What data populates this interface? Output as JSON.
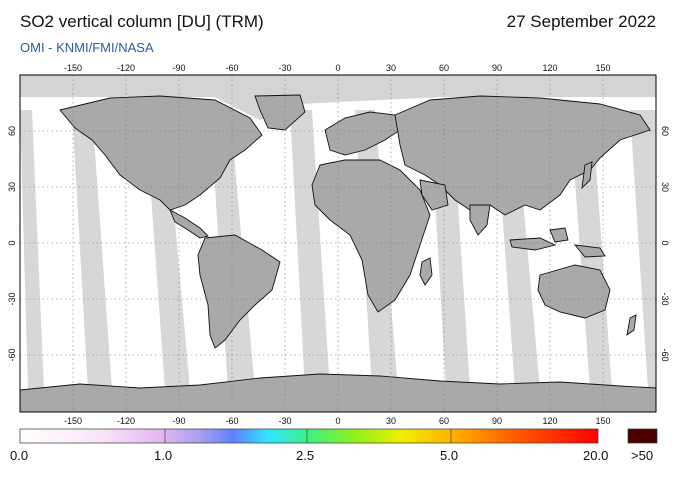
{
  "header": {
    "title": "SO2 vertical column [DU] (TRM)",
    "date": "27 September 2022",
    "credit": "OMI   -   KNMI/FMI/NASA"
  },
  "map": {
    "lon_ticks": [
      "-150",
      "-120",
      "-90",
      "-60",
      "-30",
      "0",
      "30",
      "60",
      "90",
      "120",
      "150"
    ],
    "lat_ticks": [
      "60",
      "30",
      "0",
      "-30",
      "-60"
    ],
    "colors": {
      "ocean": "#ffffff",
      "nodata": "#d4d4d4",
      "land_nodata": "#a9a9a9",
      "coast": "#111111"
    }
  },
  "colorbar": {
    "labels": [
      "0.0",
      "1.0",
      "2.5",
      "5.0",
      "20.0"
    ],
    "over_label": ">50",
    "over_color": "#4a0000"
  }
}
